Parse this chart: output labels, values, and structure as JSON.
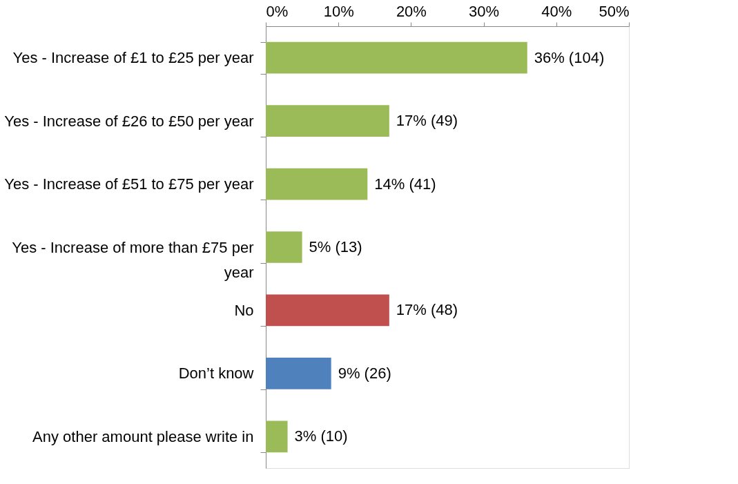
{
  "chart_data": {
    "type": "bar",
    "orientation": "horizontal",
    "categories": [
      "Yes - Increase of £1 to £25 per year",
      "Yes - Increase of £26 to £50 per year",
      "Yes - Increase of £51 to £75 per year",
      "Yes - Increase of more than £75 per year",
      "No",
      "Don’t know",
      "Any other amount please write in"
    ],
    "values": [
      36,
      17,
      14,
      5,
      17,
      9,
      3
    ],
    "colors": [
      "#9bbb59",
      "#9bbb59",
      "#9bbb59",
      "#9bbb59",
      "#c0504d",
      "#4f81bd",
      "#9bbb59"
    ],
    "value_labels": [
      "36% (104)",
      "17% (49)",
      "14% (41)",
      "5% (13)",
      "17% (48)",
      "9% (26)",
      "3% (10)"
    ],
    "xlim": [
      0,
      50
    ],
    "xticks": [
      {
        "value": 0,
        "label": "0%"
      },
      {
        "value": 10,
        "label": "10%"
      },
      {
        "value": 20,
        "label": "20%"
      },
      {
        "value": 30,
        "label": "30%"
      },
      {
        "value": 40,
        "label": "40%"
      },
      {
        "value": 50,
        "label": "50%"
      }
    ],
    "grid": false,
    "legend": false
  }
}
